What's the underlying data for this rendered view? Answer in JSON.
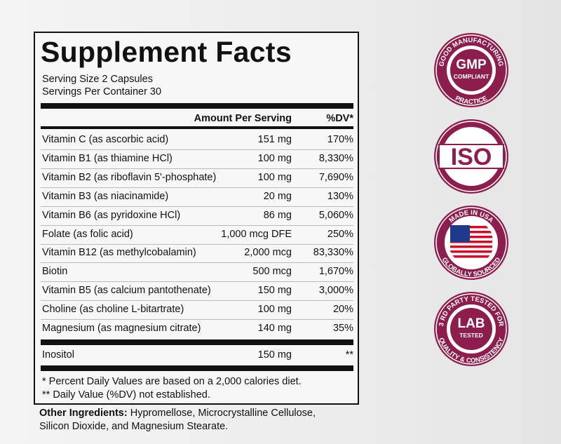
{
  "panel": {
    "title": "Supplement Facts",
    "serving_size": "Serving Size 2 Capsules",
    "servings_per_container": "Servings Per Container 30",
    "header": {
      "amount": "Amount Per Serving",
      "dv": "%DV*"
    },
    "rows": [
      [
        "Vitamin C (as ascorbic acid)",
        "151 mg",
        "170%"
      ],
      [
        "Vitamin B1 (as thiamine HCl)",
        "100 mg",
        "8,330%"
      ],
      [
        "Vitamin B2 (as riboflavin 5'-phosphate)",
        "100 mg",
        "7,690%"
      ],
      [
        "Vitamin B3 (as niacinamide)",
        "20 mg",
        "130%"
      ],
      [
        "Vitamin B6 (as pyridoxine HCl)",
        "86 mg",
        "5,060%"
      ],
      [
        "Folate (as folic acid)",
        "1,000 mcg DFE",
        "250%"
      ],
      [
        "Vitamin B12 (as methylcobalamin)",
        "2,000 mcg",
        "83,330%"
      ],
      [
        "Biotin",
        "500 mcg",
        "1,670%"
      ],
      [
        "Vitamin B5 (as calcium pantothenate)",
        "150 mg",
        "3,000%"
      ],
      [
        "Choline (as choline L-bitartrate)",
        "100 mg",
        "20%"
      ],
      [
        "Magnesium (as magnesium citrate)",
        "140 mg",
        "35%"
      ]
    ],
    "extra_row": [
      "Inositol",
      "150 mg",
      "**"
    ],
    "footnotes": [
      "* Percent Daily Values are based on a 2,000 calories diet.",
      "** Daily Value (%DV) not established."
    ]
  },
  "other_ingredients": {
    "label": "Other Ingredients:",
    "text_line1": "Hypromellose, Microcrystalline Cellulose,",
    "text_line2": "Silicon Dioxide, and Magnesium Stearate."
  },
  "badges": [
    {
      "top": "GOOD MANUFACTURING",
      "bottom": "PRACTICE",
      "center": "GMP",
      "center_small": "COMPLIANT"
    },
    {
      "center": "ISO"
    },
    {
      "top": "MADE IN USA",
      "bottom": "GLOBALLY SOURCED"
    },
    {
      "top": "3 RD PARTY TESTED FOR",
      "bottom": "QUALITY & CONSISTENCY",
      "center": "LAB",
      "center_small": "TESTED"
    }
  ]
}
